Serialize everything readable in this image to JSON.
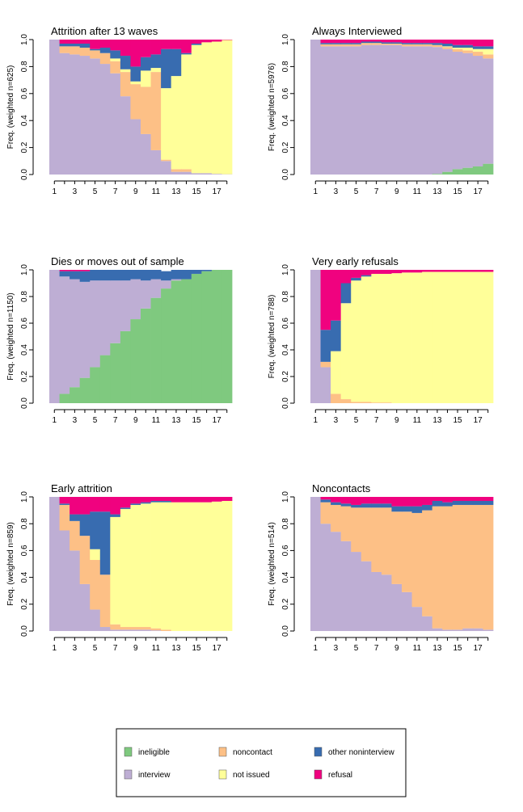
{
  "colors": {
    "ineligible": "#7fc97f",
    "interview": "#beaed4",
    "noncontact": "#fdc086",
    "not_issued": "#ffff99",
    "other_noninterview": "#386cb0",
    "refusal": "#f0027f"
  },
  "legend": {
    "items": [
      {
        "key": "ineligible",
        "label": "ineligible"
      },
      {
        "key": "noncontact",
        "label": "noncontact"
      },
      {
        "key": "other_noninterview",
        "label": "other noninterview"
      },
      {
        "key": "interview",
        "label": "interview"
      },
      {
        "key": "not_issued",
        "label": "not issued"
      },
      {
        "key": "refusal",
        "label": "refusal"
      }
    ]
  },
  "chart_data": [
    {
      "type": "bar",
      "stacked": true,
      "title": "Attrition after 13 waves",
      "ylabel": "Freq. (weighted n=625)",
      "x_ticks": [
        "1",
        "3",
        "5",
        "7",
        "9",
        "11",
        "13",
        "15",
        "17"
      ],
      "y_ticks": [
        "0.0",
        "0.2",
        "0.4",
        "0.6",
        "0.8",
        "1.0"
      ],
      "ylim": [
        0,
        1
      ],
      "categories": [
        1,
        2,
        3,
        4,
        5,
        6,
        7,
        8,
        9,
        10,
        11,
        12,
        13,
        14,
        15,
        16,
        17,
        18
      ],
      "stack_order": [
        "ineligible",
        "interview",
        "noncontact",
        "not_issued",
        "other_noninterview",
        "refusal"
      ],
      "series": [
        {
          "key": "ineligible",
          "values": [
            0,
            0,
            0,
            0,
            0,
            0,
            0,
            0,
            0,
            0,
            0,
            0,
            0,
            0,
            0,
            0,
            0,
            0
          ]
        },
        {
          "key": "interview",
          "values": [
            1,
            0.9,
            0.89,
            0.88,
            0.86,
            0.82,
            0.75,
            0.58,
            0.41,
            0.3,
            0.18,
            0.1,
            0.02,
            0.02,
            0.01,
            0.01,
            0.005,
            0.002
          ]
        },
        {
          "key": "noncontact",
          "values": [
            0,
            0.05,
            0.06,
            0.06,
            0.06,
            0.08,
            0.09,
            0.18,
            0.26,
            0.35,
            0.58,
            0.01,
            0.02,
            0.02,
            0,
            0,
            0,
            0
          ]
        },
        {
          "key": "not_issued",
          "values": [
            0,
            0,
            0,
            0,
            0,
            0,
            0.02,
            0.02,
            0.02,
            0.12,
            0.03,
            0.53,
            0.69,
            0.85,
            0.95,
            0.97,
            0.98,
            0.995
          ]
        },
        {
          "key": "other_noninterview",
          "values": [
            0,
            0.02,
            0.02,
            0.03,
            0.01,
            0.04,
            0.06,
            0.1,
            0.11,
            0.1,
            0.1,
            0.29,
            0.2,
            0.01,
            0.01,
            0,
            0,
            0
          ]
        },
        {
          "key": "refusal",
          "values": [
            0,
            0.03,
            0.03,
            0.03,
            0.07,
            0.06,
            0.08,
            0.12,
            0.2,
            0.13,
            0.11,
            0.07,
            0.07,
            0.1,
            0.03,
            0.02,
            0.015,
            0.003
          ]
        }
      ]
    },
    {
      "type": "bar",
      "stacked": true,
      "title": "Always Interviewed",
      "ylabel": "Freq. (weighted n=5976)",
      "x_ticks": [
        "1",
        "3",
        "5",
        "7",
        "9",
        "11",
        "13",
        "15",
        "17"
      ],
      "y_ticks": [
        "0.0",
        "0.2",
        "0.4",
        "0.6",
        "0.8",
        "1.0"
      ],
      "ylim": [
        0,
        1
      ],
      "categories": [
        1,
        2,
        3,
        4,
        5,
        6,
        7,
        8,
        9,
        10,
        11,
        12,
        13,
        14,
        15,
        16,
        17,
        18
      ],
      "stack_order": [
        "ineligible",
        "interview",
        "noncontact",
        "not_issued",
        "other_noninterview",
        "refusal"
      ],
      "series": [
        {
          "key": "ineligible",
          "values": [
            0,
            0,
            0,
            0,
            0,
            0,
            0,
            0,
            0,
            0,
            0,
            0,
            0.005,
            0.02,
            0.04,
            0.05,
            0.06,
            0.08
          ]
        },
        {
          "key": "interview",
          "values": [
            1,
            0.95,
            0.95,
            0.95,
            0.95,
            0.96,
            0.96,
            0.96,
            0.96,
            0.95,
            0.95,
            0.95,
            0.94,
            0.91,
            0.87,
            0.85,
            0.82,
            0.78
          ]
        },
        {
          "key": "noncontact",
          "values": [
            0,
            0.015,
            0.015,
            0.015,
            0.015,
            0.015,
            0.015,
            0.01,
            0.01,
            0.015,
            0.015,
            0.015,
            0.015,
            0.015,
            0.02,
            0.02,
            0.03,
            0.03
          ]
        },
        {
          "key": "not_issued",
          "values": [
            0,
            0,
            0,
            0,
            0,
            0,
            0,
            0,
            0,
            0,
            0,
            0,
            0,
            0.005,
            0.01,
            0.02,
            0.02,
            0.04
          ]
        },
        {
          "key": "other_noninterview",
          "values": [
            0,
            0.01,
            0.01,
            0.01,
            0.01,
            0.01,
            0.01,
            0.01,
            0.01,
            0.01,
            0.01,
            0.01,
            0.015,
            0.02,
            0.02,
            0.02,
            0.02,
            0.02
          ]
        },
        {
          "key": "refusal",
          "values": [
            0,
            0.025,
            0.025,
            0.025,
            0.025,
            0.015,
            0.015,
            0.02,
            0.02,
            0.025,
            0.025,
            0.025,
            0.025,
            0.03,
            0.04,
            0.04,
            0.05,
            0.05
          ]
        }
      ]
    },
    {
      "type": "bar",
      "stacked": true,
      "title": "Dies or moves out of sample",
      "ylabel": "Freq. (weighted n=1150)",
      "x_ticks": [
        "1",
        "3",
        "5",
        "7",
        "9",
        "11",
        "13",
        "15",
        "17"
      ],
      "y_ticks": [
        "0.0",
        "0.2",
        "0.4",
        "0.6",
        "0.8",
        "1.0"
      ],
      "ylim": [
        0,
        1
      ],
      "categories": [
        1,
        2,
        3,
        4,
        5,
        6,
        7,
        8,
        9,
        10,
        11,
        12,
        13,
        14,
        15,
        16,
        17,
        18
      ],
      "stack_order": [
        "ineligible",
        "interview",
        "noncontact",
        "not_issued",
        "other_noninterview",
        "refusal"
      ],
      "series": [
        {
          "key": "ineligible",
          "values": [
            0,
            0.07,
            0.12,
            0.19,
            0.27,
            0.36,
            0.45,
            0.54,
            0.63,
            0.71,
            0.79,
            0.86,
            0.92,
            0.93,
            0.97,
            0.99,
            1,
            1
          ]
        },
        {
          "key": "interview",
          "values": [
            1,
            0.88,
            0.81,
            0.72,
            0.65,
            0.56,
            0.47,
            0.38,
            0.3,
            0.21,
            0.14,
            0.06,
            0.01,
            0,
            0,
            0,
            0,
            0
          ]
        },
        {
          "key": "noncontact",
          "values": [
            0,
            0,
            0,
            0,
            0,
            0,
            0,
            0,
            0,
            0,
            0,
            0,
            0,
            0,
            0,
            0,
            0,
            0
          ]
        },
        {
          "key": "not_issued",
          "values": [
            0,
            0,
            0,
            0,
            0,
            0,
            0,
            0,
            0,
            0,
            0,
            0,
            0,
            0,
            0,
            0,
            0,
            0
          ]
        },
        {
          "key": "other_noninterview",
          "values": [
            0,
            0.04,
            0.06,
            0.08,
            0.08,
            0.08,
            0.08,
            0.08,
            0.07,
            0.08,
            0.07,
            0.07,
            0.07,
            0.07,
            0.03,
            0.01,
            0,
            0
          ]
        },
        {
          "key": "refusal",
          "values": [
            0,
            0.01,
            0.01,
            0.01,
            0,
            0,
            0,
            0,
            0,
            0,
            0,
            0,
            0,
            0,
            0,
            0,
            0,
            0
          ]
        }
      ]
    },
    {
      "type": "bar",
      "stacked": true,
      "title": "Very early refusals",
      "ylabel": "Freq. (weighted n=788)",
      "x_ticks": [
        "1",
        "3",
        "5",
        "7",
        "9",
        "11",
        "13",
        "15",
        "17"
      ],
      "y_ticks": [
        "0.0",
        "0.2",
        "0.4",
        "0.6",
        "0.8",
        "1.0"
      ],
      "ylim": [
        0,
        1
      ],
      "categories": [
        1,
        2,
        3,
        4,
        5,
        6,
        7,
        8,
        9,
        10,
        11,
        12,
        13,
        14,
        15,
        16,
        17,
        18
      ],
      "stack_order": [
        "ineligible",
        "interview",
        "noncontact",
        "not_issued",
        "other_noninterview",
        "refusal"
      ],
      "series": [
        {
          "key": "ineligible",
          "values": [
            0,
            0,
            0,
            0,
            0,
            0,
            0,
            0,
            0,
            0,
            0,
            0,
            0,
            0,
            0,
            0,
            0,
            0
          ]
        },
        {
          "key": "interview",
          "values": [
            1,
            0.27,
            0,
            0,
            0,
            0,
            0,
            0,
            0,
            0,
            0,
            0,
            0,
            0,
            0,
            0,
            0,
            0
          ]
        },
        {
          "key": "noncontact",
          "values": [
            0,
            0.04,
            0.07,
            0.03,
            0.01,
            0.01,
            0.005,
            0.005,
            0,
            0,
            0,
            0,
            0,
            0,
            0,
            0,
            0,
            0
          ]
        },
        {
          "key": "not_issued",
          "values": [
            0,
            0,
            0.32,
            0.72,
            0.91,
            0.94,
            0.965,
            0.965,
            0.975,
            0.98,
            0.98,
            0.985,
            0.985,
            0.985,
            0.985,
            0.985,
            0.985,
            0.985
          ]
        },
        {
          "key": "other_noninterview",
          "values": [
            0,
            0.24,
            0.23,
            0.15,
            0.02,
            0.01,
            0,
            0,
            0,
            0,
            0,
            0,
            0,
            0,
            0,
            0,
            0,
            0
          ]
        },
        {
          "key": "refusal",
          "values": [
            0,
            0.45,
            0.38,
            0.1,
            0.06,
            0.04,
            0.03,
            0.03,
            0.025,
            0.02,
            0.02,
            0.015,
            0.015,
            0.015,
            0.015,
            0.015,
            0.015,
            0.015
          ]
        }
      ]
    },
    {
      "type": "bar",
      "stacked": true,
      "title": "Early attrition",
      "ylabel": "Freq. (weighted n=859)",
      "x_ticks": [
        "1",
        "3",
        "5",
        "7",
        "9",
        "11",
        "13",
        "15",
        "17"
      ],
      "y_ticks": [
        "0.0",
        "0.2",
        "0.4",
        "0.6",
        "0.8",
        "1.0"
      ],
      "ylim": [
        0,
        1
      ],
      "categories": [
        1,
        2,
        3,
        4,
        5,
        6,
        7,
        8,
        9,
        10,
        11,
        12,
        13,
        14,
        15,
        16,
        17,
        18
      ],
      "stack_order": [
        "ineligible",
        "interview",
        "noncontact",
        "not_issued",
        "other_noninterview",
        "refusal"
      ],
      "series": [
        {
          "key": "ineligible",
          "values": [
            0,
            0,
            0,
            0,
            0,
            0,
            0,
            0,
            0,
            0,
            0,
            0,
            0,
            0,
            0,
            0,
            0,
            0
          ]
        },
        {
          "key": "interview",
          "values": [
            1,
            0.75,
            0.6,
            0.35,
            0.16,
            0.03,
            0.01,
            0.01,
            0.01,
            0.01,
            0.005,
            0,
            0,
            0,
            0,
            0,
            0,
            0
          ]
        },
        {
          "key": "noncontact",
          "values": [
            0,
            0.19,
            0.22,
            0.36,
            0.37,
            0.39,
            0.04,
            0.02,
            0.02,
            0.02,
            0.015,
            0.01,
            0,
            0,
            0,
            0,
            0,
            0
          ]
        },
        {
          "key": "not_issued",
          "values": [
            0,
            0,
            0,
            0,
            0.08,
            0,
            0.8,
            0.88,
            0.91,
            0.92,
            0.94,
            0.95,
            0.96,
            0.96,
            0.96,
            0.96,
            0.965,
            0.97
          ]
        },
        {
          "key": "other_noninterview",
          "values": [
            0,
            0.01,
            0.05,
            0.16,
            0.28,
            0.47,
            0.02,
            0.01,
            0.01,
            0.01,
            0.01,
            0.01,
            0,
            0,
            0,
            0,
            0,
            0
          ]
        },
        {
          "key": "refusal",
          "values": [
            0,
            0.05,
            0.13,
            0.13,
            0.11,
            0.11,
            0.13,
            0.08,
            0.05,
            0.04,
            0.03,
            0.03,
            0.04,
            0.04,
            0.04,
            0.04,
            0.035,
            0.03
          ]
        }
      ]
    },
    {
      "type": "bar",
      "stacked": true,
      "title": "Noncontacts",
      "ylabel": "Freq. (weighted n=514)",
      "x_ticks": [
        "1",
        "3",
        "5",
        "7",
        "9",
        "11",
        "13",
        "15",
        "17"
      ],
      "y_ticks": [
        "0.0",
        "0.2",
        "0.4",
        "0.6",
        "0.8",
        "1.0"
      ],
      "ylim": [
        0,
        1
      ],
      "categories": [
        1,
        2,
        3,
        4,
        5,
        6,
        7,
        8,
        9,
        10,
        11,
        12,
        13,
        14,
        15,
        16,
        17,
        18
      ],
      "stack_order": [
        "ineligible",
        "interview",
        "noncontact",
        "not_issued",
        "other_noninterview",
        "refusal"
      ],
      "series": [
        {
          "key": "ineligible",
          "values": [
            0,
            0,
            0,
            0,
            0,
            0,
            0,
            0,
            0,
            0,
            0,
            0,
            0,
            0,
            0,
            0,
            0,
            0
          ]
        },
        {
          "key": "interview",
          "values": [
            1,
            0.8,
            0.74,
            0.67,
            0.59,
            0.52,
            0.44,
            0.42,
            0.35,
            0.29,
            0.18,
            0.11,
            0.02,
            0.01,
            0.01,
            0.02,
            0.02,
            0.01
          ]
        },
        {
          "key": "noncontact",
          "values": [
            0,
            0.16,
            0.2,
            0.26,
            0.33,
            0.4,
            0.48,
            0.5,
            0.54,
            0.6,
            0.7,
            0.79,
            0.91,
            0.92,
            0.93,
            0.92,
            0.92,
            0.93
          ]
        },
        {
          "key": "not_issued",
          "values": [
            0,
            0,
            0,
            0,
            0,
            0,
            0,
            0,
            0,
            0,
            0,
            0,
            0,
            0,
            0,
            0,
            0,
            0
          ]
        },
        {
          "key": "other_noninterview",
          "values": [
            0,
            0.02,
            0.02,
            0.02,
            0.02,
            0.03,
            0.03,
            0.03,
            0.04,
            0.04,
            0.05,
            0.04,
            0.04,
            0.03,
            0.03,
            0.03,
            0.03,
            0.03
          ]
        },
        {
          "key": "refusal",
          "values": [
            0,
            0.02,
            0.04,
            0.05,
            0.06,
            0.05,
            0.05,
            0.05,
            0.07,
            0.07,
            0.07,
            0.06,
            0.03,
            0.04,
            0.03,
            0.03,
            0.03,
            0.03
          ]
        }
      ]
    }
  ]
}
